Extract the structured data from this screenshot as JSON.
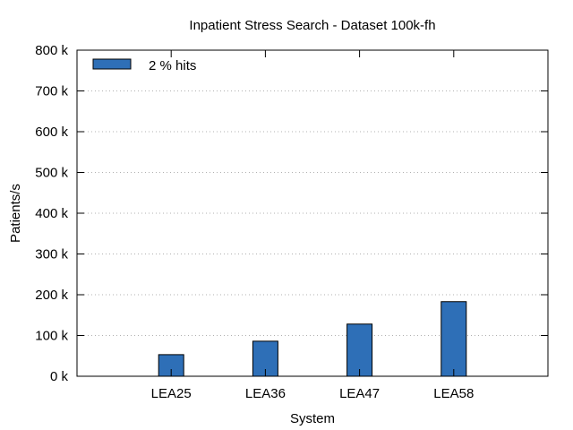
{
  "chart_data": {
    "type": "bar",
    "title": "Inpatient Stress Search - Dataset 100k-fh",
    "xlabel": "System",
    "ylabel": "Patients/s",
    "categories": [
      "LEA25",
      "LEA36",
      "LEA47",
      "LEA58"
    ],
    "series": [
      {
        "name": "2 % hits",
        "values": [
          53000,
          86000,
          128000,
          183000
        ],
        "color": "#2e6fb7"
      }
    ],
    "ylim": [
      0,
      800000
    ],
    "yticks": [
      0,
      100000,
      200000,
      300000,
      400000,
      500000,
      600000,
      700000,
      800000
    ],
    "ytick_labels": [
      "0 k",
      "100 k",
      "200 k",
      "300 k",
      "400 k",
      "500 k",
      "600 k",
      "700 k",
      "800 k"
    ],
    "grid": "horizontal-dotted",
    "legend_position": "top-left"
  }
}
